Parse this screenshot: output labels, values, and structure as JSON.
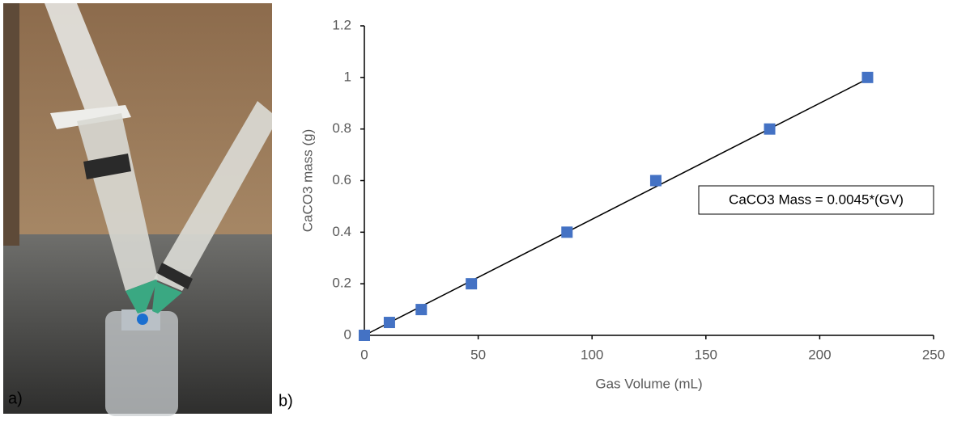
{
  "panel_labels": [
    "a)",
    "b)"
  ],
  "chart_data": {
    "type": "scatter",
    "x_label": "Gas Volume (mL)",
    "y_label": "CaCO3 mass (g)",
    "x": [
      0,
      11,
      25,
      47,
      89,
      128,
      178,
      221
    ],
    "values": [
      0,
      0.05,
      0.1,
      0.2,
      0.4,
      0.6,
      0.8,
      1.0
    ],
    "color": "#4472c4",
    "xlim": [
      0,
      250
    ],
    "xticks": [
      0,
      50,
      100,
      150,
      200,
      250
    ],
    "ylim": [
      0,
      1.2
    ],
    "yticks": [
      0,
      0.2,
      0.4,
      0.6,
      0.8,
      1,
      1.2
    ],
    "trendline": {
      "slope": 0.0045,
      "xrange": [
        0,
        221
      ],
      "color": "#000000"
    },
    "annotation": "CaCO3 Mass = 0.0045*(GV)"
  }
}
